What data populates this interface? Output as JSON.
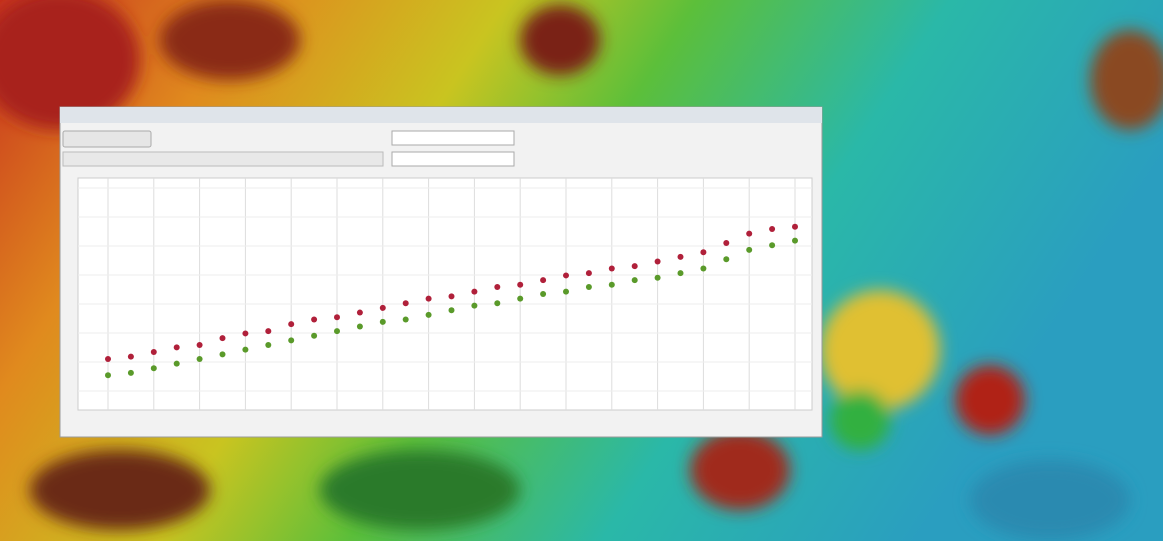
{
  "chart_data": {
    "type": "scatter",
    "x": [
      0,
      0.5,
      1,
      1.5,
      2,
      2.5,
      3,
      3.5,
      4,
      4.5,
      5,
      5.5,
      6,
      6.5,
      7,
      7.5,
      8,
      8.5,
      9,
      9.5,
      10,
      10.5,
      11,
      11.5,
      12,
      12.5,
      13,
      13.5,
      14,
      14.5,
      15
    ],
    "series": [
      {
        "color": "#b0203a",
        "values": [
          2.2,
          2.3,
          2.5,
          2.7,
          2.8,
          3.1,
          3.3,
          3.4,
          3.7,
          3.9,
          4.0,
          4.2,
          4.4,
          4.6,
          4.8,
          4.9,
          5.1,
          5.3,
          5.4,
          5.6,
          5.8,
          5.9,
          6.1,
          6.2,
          6.4,
          6.6,
          6.8,
          7.2,
          7.6,
          7.8,
          7.9
        ]
      },
      {
        "color": "#5a9a2a",
        "values": [
          1.5,
          1.6,
          1.8,
          2.0,
          2.2,
          2.4,
          2.6,
          2.8,
          3.0,
          3.2,
          3.4,
          3.6,
          3.8,
          3.9,
          4.1,
          4.3,
          4.5,
          4.6,
          4.8,
          5.0,
          5.1,
          5.3,
          5.4,
          5.6,
          5.7,
          5.9,
          6.1,
          6.5,
          6.9,
          7.1,
          7.3
        ]
      }
    ],
    "xlim": [
      0,
      15
    ],
    "ylim": [
      0,
      10
    ]
  }
}
